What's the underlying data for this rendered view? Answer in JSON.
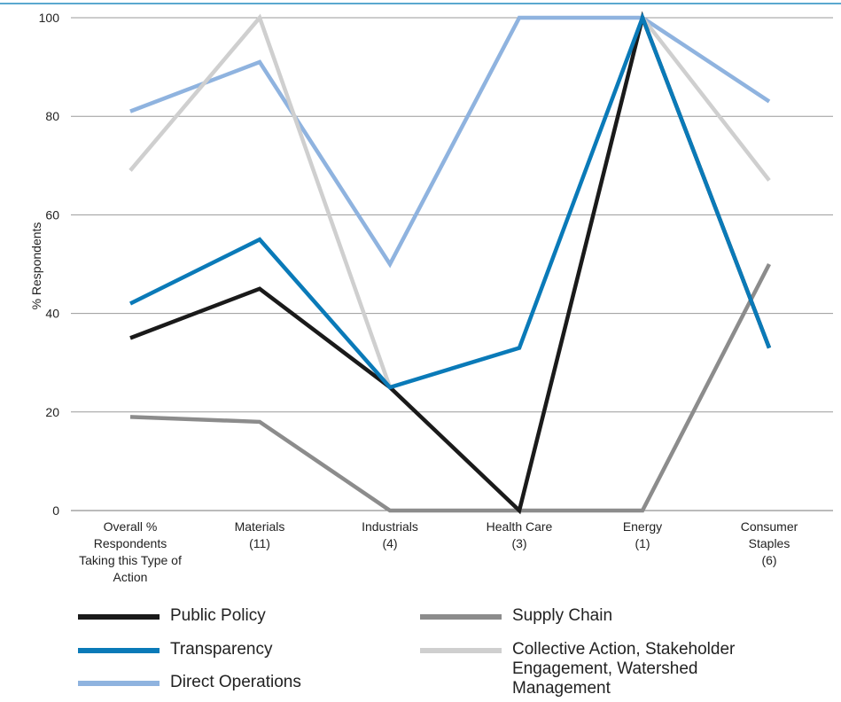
{
  "chart_data": {
    "type": "line",
    "categories": [
      [
        "Overall %",
        "Respondents",
        "Taking this Type of",
        "Action"
      ],
      [
        "Materials",
        "(11)"
      ],
      [
        "Industrials",
        "(4)"
      ],
      [
        "Health Care",
        "(3)"
      ],
      [
        "Energy",
        "(1)"
      ],
      [
        "Consumer",
        "Staples",
        "(6)"
      ]
    ],
    "ylabel": "% Respondents",
    "ylim": [
      0,
      100
    ],
    "yticks": [
      0,
      20,
      40,
      60,
      80,
      100
    ],
    "grid": true,
    "legend_position": "bottom",
    "series": [
      {
        "name": "Supply Chain",
        "color": "#8c8c8c",
        "values": [
          19,
          18,
          0,
          0,
          0,
          50
        ]
      },
      {
        "name": "Direct Operations",
        "color": "#8fb3df",
        "values": [
          81,
          91,
          50,
          100,
          100,
          83
        ]
      },
      {
        "name": "Collective Action, Stakeholder Engagement, Watershed Management",
        "color": "#cfcfcf",
        "values": [
          69,
          100,
          25,
          0,
          100,
          67
        ]
      },
      {
        "name": "Public Policy",
        "color": "#1a1a1a",
        "values": [
          35,
          45,
          25,
          0,
          100,
          33
        ]
      },
      {
        "name": "Transparency",
        "color": "#0a7ab8",
        "values": [
          42,
          55,
          25,
          33,
          100,
          33
        ]
      }
    ]
  },
  "legend": {
    "public_policy": "Public Policy",
    "transparency": "Transparency",
    "direct_operations": "Direct Operations",
    "supply_chain": "Supply Chain",
    "collective_action": "Collective Action, Stakeholder Engagement, Watershed Management",
    "colors": {
      "public_policy": "#1a1a1a",
      "transparency": "#0a7ab8",
      "direct_operations": "#8fb3df",
      "supply_chain": "#8c8c8c",
      "collective_action": "#cfcfcf"
    }
  }
}
